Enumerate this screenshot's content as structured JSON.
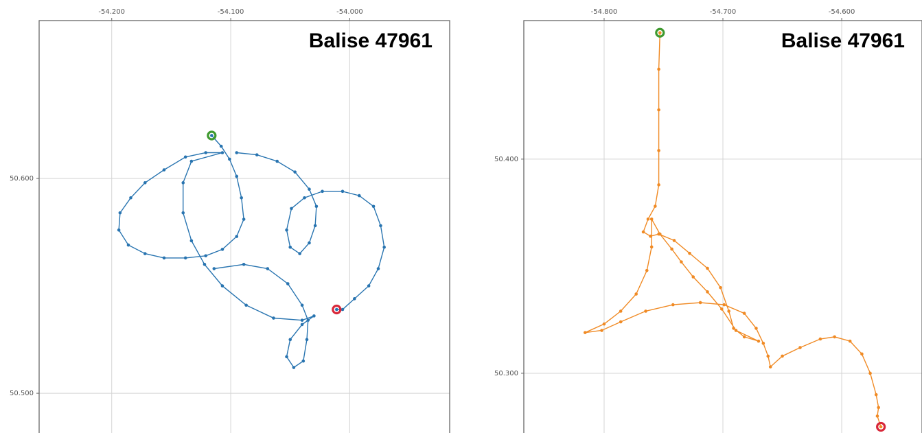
{
  "chart_data": [
    {
      "type": "line",
      "title": "Balise 47961",
      "color": "#2874b0",
      "start_color": "#3f9a2f",
      "end_color": "#d8283a",
      "grid": true,
      "xlim": [
        -54.261,
        -53.916
      ],
      "ylim": [
        50.4815,
        50.6735
      ],
      "xticks": [
        {
          "value": -54.2,
          "label": "-54.200"
        },
        {
          "value": -54.1,
          "label": "-54.100"
        },
        {
          "value": -54.0,
          "label": "-54.000"
        }
      ],
      "yticks": [
        {
          "value": 50.6,
          "label": "50.600"
        },
        {
          "value": 50.5,
          "label": "50.500"
        }
      ],
      "x": [
        -54.116,
        -54.108,
        -54.101,
        -54.095,
        -54.091,
        -54.089,
        -54.095,
        -54.107,
        -54.121,
        -54.138,
        -54.156,
        -54.172,
        -54.186,
        -54.194,
        -54.193,
        -54.184,
        -54.172,
        -54.156,
        -54.138,
        -54.121,
        -54.107,
        -54.133,
        -54.14,
        -54.14,
        -54.133,
        -54.122,
        -54.107,
        -54.087,
        -54.064,
        -54.04,
        -54.03,
        -54.04,
        -54.05,
        -54.053,
        -54.047,
        -54.039,
        -54.036,
        -54.035,
        -54.04,
        -54.052,
        -54.069,
        -54.089,
        -54.114,
        null,
        -54.095,
        -54.078,
        -54.061,
        -54.046,
        -54.034,
        -54.028,
        -54.029,
        -54.034,
        -54.042,
        -54.05,
        -54.053,
        -54.049,
        -54.038,
        -54.023,
        -54.006,
        -53.992,
        -53.98,
        -53.974,
        -53.971,
        -53.976,
        -53.984,
        -53.996,
        -54.006,
        -54.011
      ],
      "values": [
        50.62,
        50.615,
        50.609,
        50.601,
        50.591,
        50.581,
        50.573,
        50.567,
        50.564,
        50.563,
        50.563,
        50.565,
        50.569,
        50.576,
        50.584,
        50.591,
        50.598,
        50.604,
        50.61,
        50.612,
        50.612,
        50.608,
        50.598,
        50.584,
        50.571,
        50.56,
        50.55,
        50.541,
        50.535,
        50.534,
        50.536,
        50.532,
        50.525,
        50.517,
        50.512,
        50.515,
        50.525,
        50.534,
        50.541,
        50.551,
        50.558,
        50.56,
        50.558,
        null,
        50.612,
        50.611,
        50.608,
        50.603,
        50.595,
        50.587,
        50.578,
        50.57,
        50.565,
        50.568,
        50.576,
        50.586,
        50.591,
        50.594,
        50.594,
        50.592,
        50.587,
        50.578,
        50.568,
        50.558,
        50.55,
        50.544,
        50.539,
        50.539
      ]
    },
    {
      "type": "line",
      "title": "Balise 47961",
      "color": "#f08a24",
      "start_color": "#3f9a2f",
      "end_color": "#d8283a",
      "grid": true,
      "xlim": [
        -54.8676,
        -54.5324
      ],
      "ylim": [
        50.2721,
        50.4647
      ],
      "xticks": [
        {
          "value": -54.8,
          "label": "-54.800"
        },
        {
          "value": -54.7,
          "label": "-54.700"
        },
        {
          "value": -54.6,
          "label": "-54.600"
        }
      ],
      "yticks": [
        {
          "value": 50.4,
          "label": "50.400"
        },
        {
          "value": 50.3,
          "label": "50.300"
        }
      ],
      "x": [
        -54.753,
        -54.754,
        -54.754,
        -54.754,
        -54.754,
        -54.757,
        -54.763,
        -54.767,
        -54.761,
        -54.754,
        -54.741,
        -54.728,
        -54.713,
        -54.702,
        -54.695,
        -54.691,
        -54.682,
        -54.67,
        -54.689,
        -54.701,
        -54.713,
        -54.725,
        -54.735,
        -54.743,
        -54.753,
        -54.76,
        -54.76,
        -54.764,
        -54.773,
        -54.786,
        -54.8,
        -54.816,
        -54.802,
        -54.786,
        -54.765,
        -54.742,
        -54.719,
        -54.699,
        -54.682,
        -54.672,
        -54.666,
        -54.662,
        -54.66,
        -54.65,
        -54.635,
        -54.618,
        -54.606,
        -54.593,
        -54.583,
        -54.576,
        -54.571,
        -54.569,
        -54.57,
        -54.567
      ],
      "values": [
        50.459,
        50.442,
        50.423,
        50.404,
        50.388,
        50.378,
        50.372,
        50.366,
        50.364,
        50.365,
        50.362,
        50.356,
        50.349,
        50.34,
        50.329,
        50.321,
        50.317,
        50.315,
        50.32,
        50.33,
        50.338,
        50.345,
        50.352,
        50.358,
        50.365,
        50.372,
        50.359,
        50.348,
        50.337,
        50.329,
        50.323,
        50.319,
        50.32,
        50.324,
        50.329,
        50.332,
        50.333,
        50.332,
        50.328,
        50.321,
        50.314,
        50.308,
        50.303,
        50.308,
        50.312,
        50.316,
        50.317,
        50.315,
        50.309,
        50.3,
        50.29,
        50.284,
        50.28,
        50.275
      ]
    }
  ]
}
